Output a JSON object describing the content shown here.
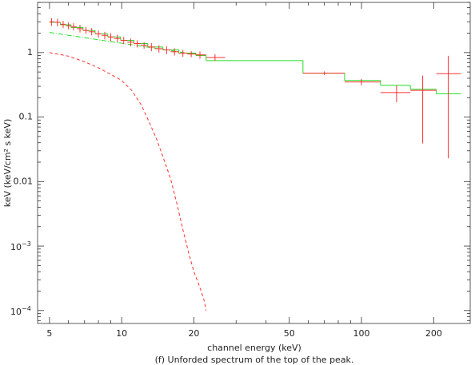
{
  "chart_data": {
    "type": "line",
    "xlabel": "channel energy (keV)",
    "ylabel": "keV (keV/cm² s keV)",
    "caption": "(f) Unforded spectrum of the top of the peak.",
    "xlog": true,
    "ylog": true,
    "xlim": [
      4.46,
      284
    ],
    "ylim": [
      6.3e-05,
      6.0
    ],
    "xticks": [
      5,
      10,
      20,
      50,
      100,
      200
    ],
    "xminor": [
      6,
      7,
      8,
      9,
      30,
      40,
      60,
      70,
      80,
      90
    ],
    "yticks": [
      {
        "value": 0.0001,
        "label": "10",
        "exponent": "−4"
      },
      {
        "value": 0.001,
        "label": "10",
        "exponent": "−3"
      },
      0.01,
      0.1,
      1
    ],
    "yminor": [
      7e-05,
      8e-05,
      9e-05,
      0.0002,
      0.0003,
      0.0004,
      0.0005,
      0.0006,
      0.0007,
      0.0008,
      0.0009,
      0.002,
      0.003,
      0.004,
      0.005,
      0.006,
      0.007,
      0.008,
      0.009,
      0.02,
      0.03,
      0.04,
      0.05,
      0.06,
      0.07,
      0.08,
      0.09,
      0.2,
      0.3,
      0.4,
      0.5,
      0.6,
      0.7,
      0.8,
      0.9,
      2,
      3,
      4,
      5,
      6
    ],
    "series": [
      {
        "style": "step",
        "color": "#22dd22",
        "bins": [
          5.0,
          5.55,
          6.15,
          6.9,
          7.75,
          8.75,
          9.9,
          11.25,
          12.85,
          14.85,
          17.3,
          20.4,
          22.5,
          57,
          85,
          120,
          160,
          205,
          260
        ],
        "values": [
          2.95,
          2.7,
          2.45,
          2.2,
          1.95,
          1.75,
          1.55,
          1.38,
          1.22,
          1.1,
          0.98,
          0.9,
          0.75,
          0.48,
          0.37,
          0.31,
          0.27,
          0.23
        ]
      },
      {
        "style": "line",
        "dash": "6 2 1 2",
        "color": "#22dd22",
        "x": [
          5,
          22
        ],
        "values": [
          2.05,
          0.9
        ]
      },
      {
        "style": "line",
        "dash": "4 3",
        "color": "#ff3030",
        "x": [
          5,
          6,
          7,
          8,
          9,
          10,
          11,
          12,
          13,
          14,
          15,
          16,
          17,
          18,
          19,
          20,
          21,
          22,
          22.5
        ],
        "values": [
          1.0,
          0.88,
          0.72,
          0.58,
          0.46,
          0.37,
          0.26,
          0.16,
          0.085,
          0.045,
          0.022,
          0.011,
          0.0045,
          0.0018,
          0.0008,
          0.0004,
          0.00025,
          0.00015,
          0.0001
        ]
      },
      {
        "style": "errorbar",
        "color": "#ff3030",
        "x": [
          5.1,
          5.4,
          5.7,
          6.0,
          6.3,
          6.7,
          7.1,
          7.5,
          8.0,
          8.5,
          9.0,
          9.6,
          10.2,
          10.9,
          11.6,
          12.4,
          13.3,
          14.3,
          15.4,
          16.6,
          18.0,
          19.5,
          21.2,
          24.5,
          70,
          100,
          140,
          180,
          230
        ],
        "values": [
          3.0,
          2.95,
          2.75,
          2.6,
          2.5,
          2.35,
          2.2,
          2.1,
          1.95,
          1.85,
          1.75,
          1.65,
          1.55,
          1.45,
          1.38,
          1.3,
          1.22,
          1.15,
          1.1,
          1.03,
          0.98,
          0.95,
          0.92,
          0.84,
          0.48,
          0.35,
          0.24,
          0.26,
          0.47
        ],
        "ylow": [
          2.6,
          2.55,
          2.4,
          2.3,
          2.2,
          2.05,
          1.95,
          1.85,
          1.7,
          1.6,
          1.5,
          1.45,
          1.35,
          1.25,
          1.2,
          1.15,
          1.05,
          1.0,
          0.95,
          0.9,
          0.86,
          0.85,
          0.8,
          0.75,
          0.45,
          0.31,
          0.17,
          0.039,
          0.023
        ],
        "yhigh": [
          3.4,
          3.35,
          3.1,
          2.95,
          2.85,
          2.7,
          2.5,
          2.4,
          2.2,
          2.1,
          2.0,
          1.9,
          1.75,
          1.65,
          1.55,
          1.45,
          1.4,
          1.3,
          1.25,
          1.17,
          1.1,
          1.05,
          1.04,
          0.94,
          0.51,
          0.39,
          0.31,
          0.44,
          0.89
        ],
        "xlow": [
          5.0,
          5.25,
          5.55,
          5.85,
          6.15,
          6.5,
          6.9,
          7.3,
          7.75,
          8.25,
          8.75,
          9.3,
          9.9,
          10.55,
          11.25,
          12.0,
          12.85,
          13.8,
          14.85,
          16.0,
          17.3,
          18.75,
          20.4,
          22.5,
          57,
          85,
          120,
          160,
          205
        ],
        "xhigh": [
          5.25,
          5.55,
          5.85,
          6.15,
          6.5,
          6.9,
          7.3,
          7.75,
          8.25,
          8.75,
          9.3,
          9.9,
          10.55,
          11.25,
          12.0,
          12.85,
          13.8,
          14.85,
          16.0,
          17.3,
          18.75,
          20.4,
          22.5,
          27,
          85,
          120,
          160,
          205,
          260
        ]
      }
    ]
  }
}
